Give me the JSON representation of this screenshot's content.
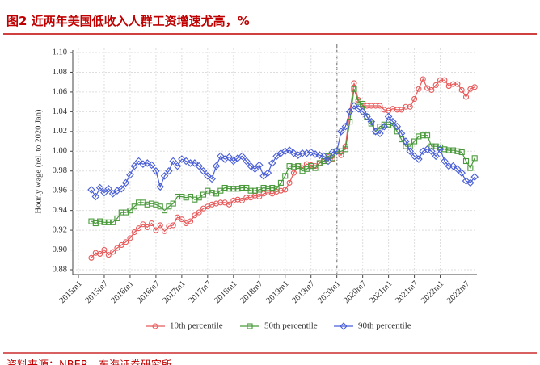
{
  "chart_data": {
    "type": "line",
    "title": "图2 近两年美国低收入人群工资增速尤高，%",
    "source": "资料来源：NBER，东海证券研究所",
    "y_label": "Hourly wage (rel. to 2020 Jan)",
    "categories": [
      "2015m1",
      null,
      null,
      null,
      null,
      null,
      "2015m7",
      null,
      null,
      null,
      null,
      null,
      "2016m1",
      null,
      null,
      null,
      null,
      null,
      "2016m7",
      null,
      null,
      null,
      null,
      null,
      "2017m1",
      null,
      null,
      null,
      null,
      null,
      "2017m7",
      null,
      null,
      null,
      null,
      null,
      "2018m1",
      null,
      null,
      null,
      null,
      null,
      "2018m7",
      null,
      null,
      null,
      null,
      null,
      "2019m1",
      null,
      null,
      null,
      null,
      null,
      "2019m7",
      null,
      null,
      null,
      null,
      null,
      "2020m1",
      null,
      null,
      null,
      null,
      null,
      "2020m7",
      null,
      null,
      null,
      null,
      null,
      "2021m1",
      null,
      null,
      null,
      null,
      null,
      "2021m7",
      null,
      null,
      null,
      null,
      null,
      "2022m1",
      null,
      null,
      null,
      null,
      null,
      "2022m7",
      null,
      null,
      null,
      null,
      null
    ],
    "ylim": [
      0.88,
      1.1
    ],
    "yticks": [
      0.88,
      {
        "value": 0.9,
        "label": "0.90"
      },
      0.92,
      0.94,
      0.96,
      0.98,
      {
        "value": 1,
        "label": "1.00"
      },
      1.02,
      1.04,
      1.06,
      1.08,
      {
        "value": 1.1,
        "label": "1.10"
      }
    ],
    "grid": true,
    "legend": "bottom",
    "series": [
      {
        "name": "10th percentile",
        "color": "#e8595a",
        "marker": "circle",
        "values": [
          null,
          null,
          null,
          0.892,
          0.897,
          0.896,
          0.9,
          0.895,
          0.898,
          0.902,
          0.905,
          0.908,
          0.912,
          0.918,
          0.922,
          0.926,
          0.923,
          0.927,
          0.92,
          0.925,
          0.919,
          0.924,
          0.925,
          0.933,
          0.931,
          0.927,
          0.929,
          0.935,
          0.938,
          0.942,
          0.944,
          0.946,
          0.947,
          0.948,
          0.948,
          0.946,
          0.95,
          0.951,
          0.95,
          0.953,
          0.953,
          0.955,
          0.954,
          0.957,
          0.958,
          0.957,
          0.959,
          0.96,
          0.961,
          0.968,
          0.978,
          0.985,
          0.983,
          0.987,
          0.986,
          0.985,
          0.988,
          0.99,
          0.994,
          0.992,
          1.0,
          0.996,
          1.005,
          1.04,
          1.069,
          1.052,
          1.046,
          1.046,
          1.046,
          1.046,
          1.046,
          1.042,
          1.041,
          1.043,
          1.042,
          1.042,
          1.045,
          1.045,
          1.053,
          1.063,
          1.073,
          1.064,
          1.062,
          1.067,
          1.072,
          1.072,
          1.066,
          1.068,
          1.068,
          1.062,
          1.055,
          1.063,
          1.065,
          null,
          null,
          null
        ]
      },
      {
        "name": "50th percentile",
        "color": "#4a9a3c",
        "marker": "square",
        "values": [
          null,
          null,
          null,
          0.929,
          0.927,
          0.929,
          0.928,
          0.928,
          0.928,
          0.932,
          0.938,
          0.938,
          0.94,
          0.944,
          0.948,
          0.948,
          0.946,
          0.947,
          0.946,
          0.944,
          0.94,
          0.944,
          0.947,
          0.954,
          0.954,
          0.953,
          0.954,
          0.951,
          0.953,
          0.956,
          0.96,
          0.958,
          0.957,
          0.96,
          0.963,
          0.962,
          0.962,
          0.962,
          0.963,
          0.963,
          0.96,
          0.96,
          0.961,
          0.963,
          0.962,
          0.963,
          0.962,
          0.968,
          0.975,
          0.985,
          0.984,
          0.985,
          0.98,
          0.982,
          0.985,
          0.983,
          0.988,
          0.99,
          0.995,
          0.993,
          1.0,
          1.0,
          1.002,
          1.03,
          1.063,
          1.05,
          1.048,
          1.035,
          1.028,
          1.02,
          1.025,
          1.027,
          1.027,
          1.026,
          1.02,
          1.012,
          1.005,
          1.005,
          1.01,
          1.015,
          1.016,
          1.016,
          1.005,
          1.005,
          1.004,
          1.002,
          1.001,
          1.001,
          1.0,
          0.999,
          0.99,
          0.983,
          0.993,
          null,
          null,
          null
        ]
      },
      {
        "name": "90th percentile",
        "color": "#4a5fd6",
        "marker": "diamond",
        "values": [
          null,
          null,
          null,
          0.961,
          0.954,
          0.963,
          0.958,
          0.962,
          0.957,
          0.96,
          0.962,
          0.968,
          0.976,
          0.985,
          0.99,
          0.987,
          0.988,
          0.986,
          0.98,
          0.964,
          0.975,
          0.98,
          0.99,
          0.985,
          0.992,
          0.99,
          0.988,
          0.988,
          0.985,
          0.98,
          0.975,
          0.972,
          0.985,
          0.995,
          0.992,
          0.994,
          0.99,
          0.993,
          0.995,
          0.99,
          0.985,
          0.982,
          0.986,
          0.975,
          0.978,
          0.988,
          0.995,
          0.998,
          1.0,
          1.001,
          0.998,
          0.996,
          0.998,
          0.998,
          0.999,
          0.997,
          0.996,
          0.995,
          0.99,
          0.999,
          1.0,
          1.02,
          1.025,
          1.04,
          1.046,
          1.043,
          1.04,
          1.035,
          1.03,
          1.02,
          1.018,
          1.025,
          1.035,
          1.03,
          1.025,
          1.018,
          1.01,
          1.0,
          0.995,
          0.992,
          1.0,
          1.002,
          1.0,
          0.995,
          1.002,
          0.99,
          0.985,
          0.985,
          0.982,
          0.978,
          0.97,
          0.968,
          0.974,
          null,
          null,
          null
        ]
      }
    ]
  }
}
